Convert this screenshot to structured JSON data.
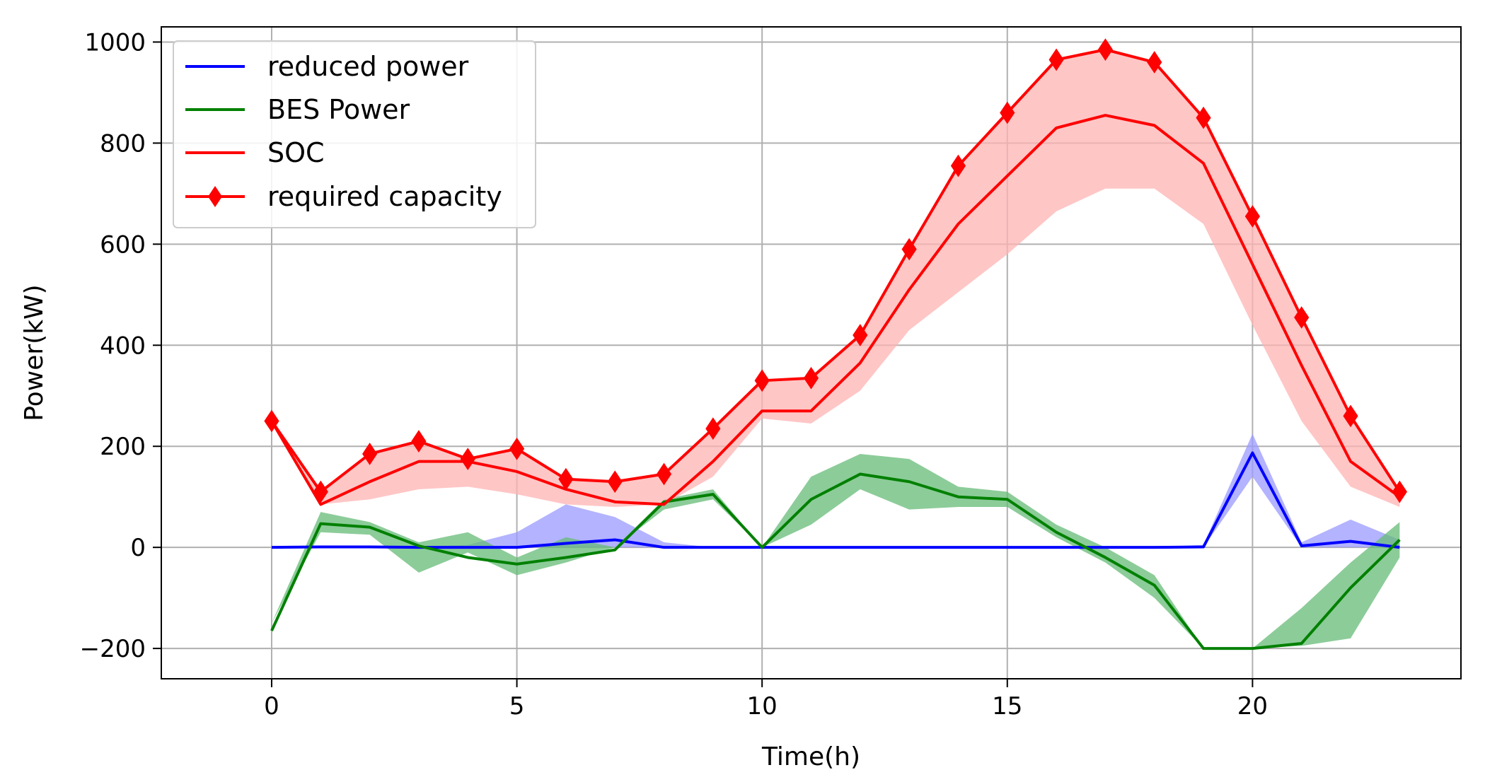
{
  "chart_data": {
    "type": "line",
    "title": "",
    "xlabel": "Time(h)",
    "ylabel": "Power(kW)",
    "xlim": [
      -2.25,
      24.25
    ],
    "ylim": [
      -260,
      1030
    ],
    "xticks": [
      0,
      5,
      10,
      15,
      20
    ],
    "yticks": [
      -200,
      0,
      200,
      400,
      600,
      800,
      1000
    ],
    "xtick_labels": [
      "0",
      "5",
      "10",
      "15",
      "20"
    ],
    "ytick_labels": [
      "−200",
      "0",
      "200",
      "400",
      "600",
      "800",
      "1000"
    ],
    "grid": true,
    "legend_position": "top-left",
    "x": [
      0,
      1,
      2,
      3,
      4,
      5,
      6,
      7,
      8,
      9,
      10,
      11,
      12,
      13,
      14,
      15,
      16,
      17,
      18,
      19,
      20,
      21,
      22,
      23
    ],
    "series": [
      {
        "name": "reduced power",
        "color": "#0000ff",
        "band_color": "#9999ff",
        "marker": "none",
        "values": [
          0,
          1,
          1,
          0,
          0,
          0,
          8,
          15,
          0,
          0,
          0,
          0,
          0,
          0,
          0,
          0,
          0,
          0,
          0,
          1,
          187,
          3,
          12,
          0
        ],
        "band_low": [
          0,
          0,
          0,
          0,
          0,
          0,
          0,
          0,
          0,
          0,
          0,
          0,
          0,
          0,
          0,
          0,
          0,
          0,
          0,
          0,
          140,
          0,
          0,
          0
        ],
        "band_high": [
          0,
          3,
          3,
          2,
          5,
          30,
          85,
          60,
          10,
          0,
          0,
          0,
          0,
          0,
          0,
          0,
          0,
          0,
          0,
          5,
          225,
          10,
          55,
          15
        ]
      },
      {
        "name": "BES Power",
        "color": "#008000",
        "band_color": "#66bb77",
        "marker": "none",
        "values": [
          -165,
          47,
          40,
          3,
          -20,
          -33,
          -20,
          -5,
          90,
          105,
          0,
          95,
          145,
          130,
          100,
          95,
          30,
          -20,
          -75,
          -200,
          -200,
          -190,
          -80,
          15
        ],
        "band_low": [
          -150,
          30,
          25,
          -50,
          -10,
          -55,
          -30,
          0,
          75,
          95,
          0,
          45,
          115,
          75,
          80,
          80,
          20,
          -30,
          -100,
          -200,
          -200,
          -195,
          -180,
          -20
        ],
        "band_high": [
          -150,
          70,
          50,
          10,
          30,
          -20,
          20,
          0,
          95,
          115,
          0,
          140,
          185,
          175,
          120,
          110,
          45,
          0,
          -55,
          -200,
          -200,
          -120,
          -30,
          50
        ]
      },
      {
        "name": "SOC",
        "color": "#ff0000",
        "band_color": "#ffb3b3",
        "marker": "none",
        "values": [
          250,
          85,
          130,
          170,
          170,
          150,
          115,
          90,
          85,
          170,
          270,
          270,
          365,
          510,
          640,
          735,
          830,
          855,
          835,
          760,
          560,
          360,
          170,
          100
        ],
        "band_low": [
          250,
          85,
          95,
          115,
          120,
          105,
          85,
          80,
          85,
          140,
          255,
          245,
          310,
          430,
          505,
          580,
          665,
          710,
          710,
          640,
          440,
          250,
          120,
          80
        ],
        "band_high": [
          250,
          110,
          185,
          210,
          175,
          195,
          135,
          130,
          145,
          235,
          330,
          335,
          420,
          590,
          755,
          860,
          965,
          985,
          960,
          850,
          655,
          455,
          260,
          110
        ]
      },
      {
        "name": "required capacity",
        "color": "#ff0000",
        "marker": "diamond",
        "values": [
          250,
          110,
          185,
          210,
          175,
          195,
          135,
          130,
          145,
          235,
          330,
          335,
          420,
          590,
          755,
          860,
          965,
          985,
          960,
          850,
          655,
          455,
          260,
          110
        ]
      }
    ]
  }
}
